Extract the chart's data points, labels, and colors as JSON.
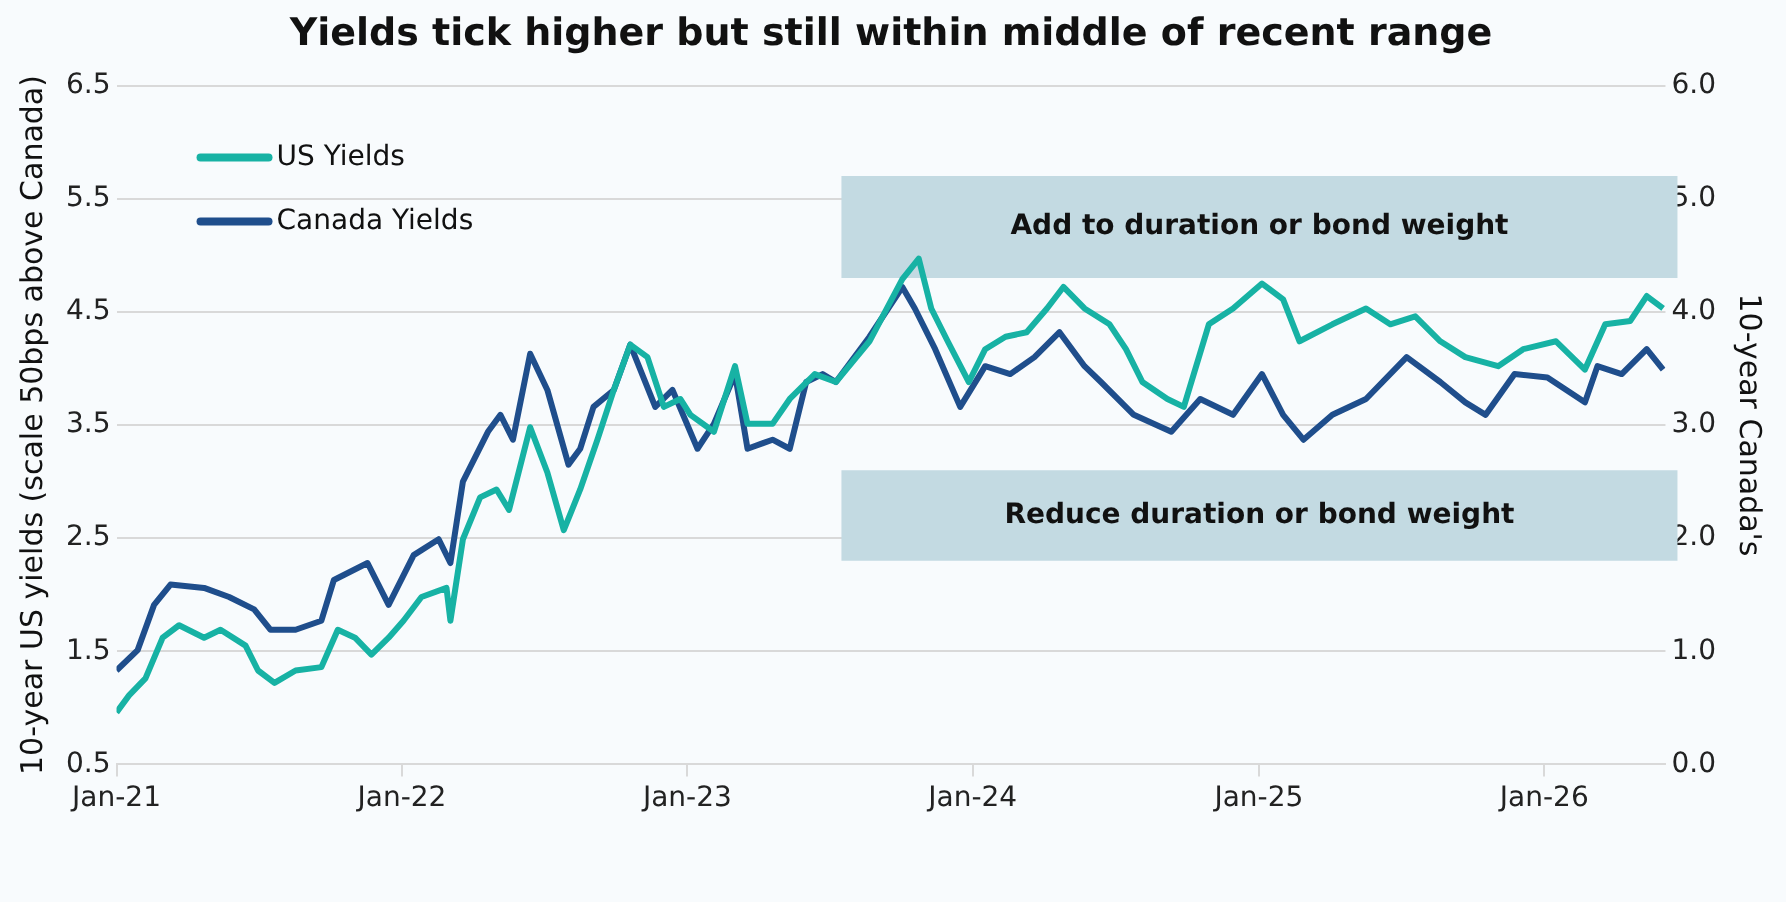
{
  "chart_data": {
    "type": "line",
    "title": "Yields tick higher but still within middle of recent range",
    "ylabel": "10-year US yields (scale 50bps above Canada)",
    "y2label": "10-year Canada's",
    "xlim": [
      "2021-01-01",
      "2026-06-05"
    ],
    "xticks": [
      {
        "value": "2021-01-01",
        "label": "Jan-21"
      },
      {
        "value": "2022-01-01",
        "label": "Jan-22"
      },
      {
        "value": "2023-01-01",
        "label": "Jan-23"
      },
      {
        "value": "2024-01-01",
        "label": "Jan-24"
      },
      {
        "value": "2025-01-01",
        "label": "Jan-25"
      },
      {
        "value": "2026-01-01",
        "label": "Jan-26"
      }
    ],
    "ylim": [
      0.5,
      6.5
    ],
    "yticks": [
      0.5,
      1.5,
      2.5,
      3.5,
      4.5,
      5.5,
      6.5
    ],
    "y2lim": [
      0,
      6
    ],
    "y2ticks": [
      {
        "value": 0,
        "label": "0.0"
      },
      {
        "value": 1,
        "label": "1.0"
      },
      {
        "value": 2,
        "label": "2.0"
      },
      {
        "value": 3,
        "label": "3.0"
      },
      {
        "value": 4,
        "label": "4.0"
      },
      {
        "value": 5,
        "label": "5.0"
      },
      {
        "value": 6,
        "label": "6.0"
      }
    ],
    "grid": "y",
    "legend": "top left",
    "marker": "none",
    "line_style": "solid",
    "bands": [
      {
        "axis": "y2",
        "from": 4.3,
        "to": 5.2,
        "label": "Add to duration or bond weight",
        "color": "#c3dae2"
      },
      {
        "axis": "y2",
        "from": 1.8,
        "to": 2.6,
        "label": "Reduce duration or bond weight",
        "color": "#c3dae2"
      }
    ],
    "series": [
      {
        "name": "US Yields",
        "color": "#17b2a4",
        "x": [
          "2021-01-01",
          "2021-01-17",
          "2021-02-07",
          "2021-03-01",
          "2021-03-22",
          "2021-04-23",
          "2021-05-14",
          "2021-06-15",
          "2021-07-01",
          "2021-07-22",
          "2021-08-18",
          "2021-09-20",
          "2021-10-11",
          "2021-11-02",
          "2021-11-23",
          "2021-12-15",
          "2022-01-03",
          "2022-01-26",
          "2022-02-27",
          "2022-03-04",
          "2022-03-20",
          "2022-04-11",
          "2022-05-02",
          "2022-05-18",
          "2022-06-14",
          "2022-07-06",
          "2022-07-27",
          "2022-08-17",
          "2022-09-08",
          "2022-09-29",
          "2022-10-20",
          "2022-11-11",
          "2022-12-02",
          "2022-12-23",
          "2023-01-05",
          "2023-02-04",
          "2023-03-03",
          "2023-03-19",
          "2023-04-20",
          "2023-05-12",
          "2023-06-13",
          "2023-07-10",
          "2023-08-22",
          "2023-10-03",
          "2023-10-24",
          "2023-11-09",
          "2023-11-30",
          "2023-12-27",
          "2024-01-17",
          "2024-02-12",
          "2024-03-10",
          "2024-04-05",
          "2024-04-26",
          "2024-05-23",
          "2024-06-24",
          "2024-07-15",
          "2024-08-05",
          "2024-09-06",
          "2024-09-27",
          "2024-10-29",
          "2024-11-29",
          "2025-01-05",
          "2025-02-01",
          "2025-02-22",
          "2025-04-05",
          "2025-05-18",
          "2025-06-18",
          "2025-07-20",
          "2025-08-21",
          "2025-09-22",
          "2025-11-03",
          "2025-12-05",
          "2026-01-16",
          "2026-02-22",
          "2026-03-20",
          "2026-04-21",
          "2026-05-12",
          "2026-06-02"
        ],
        "values": [
          0.96,
          1.11,
          1.26,
          1.62,
          1.73,
          1.62,
          1.69,
          1.55,
          1.33,
          1.22,
          1.33,
          1.36,
          1.69,
          1.62,
          1.47,
          1.62,
          1.77,
          1.98,
          2.06,
          1.77,
          2.49,
          2.86,
          2.93,
          2.75,
          3.48,
          3.08,
          2.57,
          2.93,
          3.37,
          3.81,
          4.21,
          4.1,
          3.66,
          3.73,
          3.59,
          3.44,
          4.02,
          3.51,
          3.51,
          3.73,
          3.95,
          3.88,
          4.24,
          4.79,
          4.97,
          4.53,
          4.24,
          3.88,
          4.17,
          4.28,
          4.32,
          4.53,
          4.72,
          4.53,
          4.39,
          4.17,
          3.88,
          3.73,
          3.66,
          4.39,
          4.53,
          4.75,
          4.61,
          4.24,
          4.39,
          4.53,
          4.39,
          4.46,
          4.24,
          4.1,
          4.02,
          4.17,
          4.24,
          3.99,
          4.39,
          4.42,
          4.64,
          4.53
        ]
      },
      {
        "name": "Canada Yields",
        "color": "#1f4e8c",
        "axis": "y2",
        "x": [
          "2021-01-01",
          "2021-01-28",
          "2021-02-18",
          "2021-03-11",
          "2021-04-23",
          "2021-05-25",
          "2021-06-26",
          "2021-07-17",
          "2021-08-18",
          "2021-09-20",
          "2021-10-06",
          "2021-11-18",
          "2021-12-15",
          "2022-01-16",
          "2022-02-17",
          "2022-03-04",
          "2022-03-20",
          "2022-04-21",
          "2022-05-07",
          "2022-05-23",
          "2022-06-14",
          "2022-07-06",
          "2022-08-02",
          "2022-08-17",
          "2022-09-03",
          "2022-09-29",
          "2022-10-20",
          "2022-11-21",
          "2022-12-13",
          "2023-01-14",
          "2023-02-04",
          "2023-03-03",
          "2023-03-19",
          "2023-04-20",
          "2023-05-12",
          "2023-06-02",
          "2023-06-23",
          "2023-07-10",
          "2023-08-22",
          "2023-10-03",
          "2023-10-19",
          "2023-11-14",
          "2023-12-16",
          "2024-01-17",
          "2024-02-18",
          "2024-03-20",
          "2024-04-21",
          "2024-05-23",
          "2024-06-13",
          "2024-07-25",
          "2024-09-11",
          "2024-10-18",
          "2024-11-29",
          "2025-01-05",
          "2025-02-01",
          "2025-02-27",
          "2025-04-05",
          "2025-05-18",
          "2025-07-09",
          "2025-08-21",
          "2025-09-22",
          "2025-10-18",
          "2025-11-24",
          "2026-01-05",
          "2026-02-22",
          "2026-03-10",
          "2026-04-10",
          "2026-05-12",
          "2026-06-02"
        ],
        "values": [
          0.83,
          1.01,
          1.41,
          1.59,
          1.56,
          1.48,
          1.37,
          1.19,
          1.19,
          1.27,
          1.63,
          1.78,
          1.41,
          1.85,
          1.99,
          1.78,
          2.5,
          2.94,
          3.09,
          2.87,
          3.63,
          3.31,
          2.65,
          2.79,
          3.16,
          3.31,
          3.71,
          3.16,
          3.31,
          2.79,
          3.01,
          3.45,
          2.79,
          2.87,
          2.79,
          3.38,
          3.45,
          3.38,
          3.78,
          4.22,
          4.03,
          3.67,
          3.16,
          3.52,
          3.45,
          3.6,
          3.82,
          3.52,
          3.38,
          3.09,
          2.94,
          3.23,
          3.09,
          3.45,
          3.09,
          2.87,
          3.09,
          3.23,
          3.6,
          3.38,
          3.2,
          3.09,
          3.45,
          3.42,
          3.2,
          3.52,
          3.45,
          3.67,
          3.49
        ]
      }
    ]
  }
}
